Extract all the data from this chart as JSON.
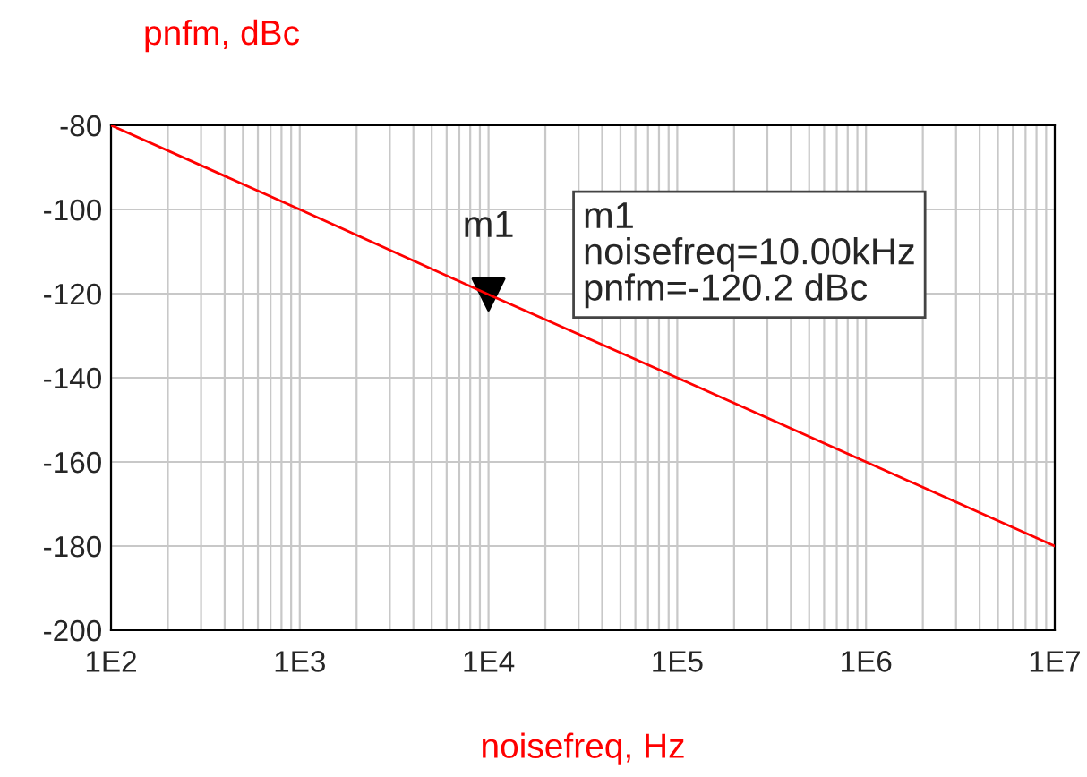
{
  "chart_data": {
    "type": "line",
    "xlabel": "noisefreq, Hz",
    "ylabel": "pnfm, dBc",
    "log": "x",
    "grid": true,
    "x": [
      100,
      1000,
      10000,
      100000,
      1000000,
      10000000
    ],
    "series": [
      {
        "color": "#ff0000",
        "values": [
          -80,
          -100,
          -120.2,
          -140,
          -160,
          -180
        ]
      },
      {
        "type": "scatter",
        "color": "#000000",
        "marker": "triangle",
        "x": [
          10000
        ],
        "values": [
          -120.2
        ]
      }
    ],
    "xlim": [
      100,
      10000000
    ],
    "xticks": [
      {
        "value": 100,
        "label": "1E2"
      },
      {
        "value": 1000,
        "label": "1E3"
      },
      {
        "value": 10000,
        "label": "1E4"
      },
      {
        "value": 100000,
        "label": "1E5"
      },
      {
        "value": 1000000,
        "label": "1E6"
      },
      {
        "value": 10000000,
        "label": "1E7"
      }
    ],
    "ylim": [
      -200,
      -80
    ],
    "yticks": [
      -200,
      -180,
      -160,
      -140,
      -120,
      -100,
      -80
    ],
    "annotations": [
      {
        "text": "m1",
        "x": 10000,
        "y": -120.2
      },
      "m1\nnoisefreq=10.00kHz\npnfm=-120.2 dBc"
    ]
  }
}
